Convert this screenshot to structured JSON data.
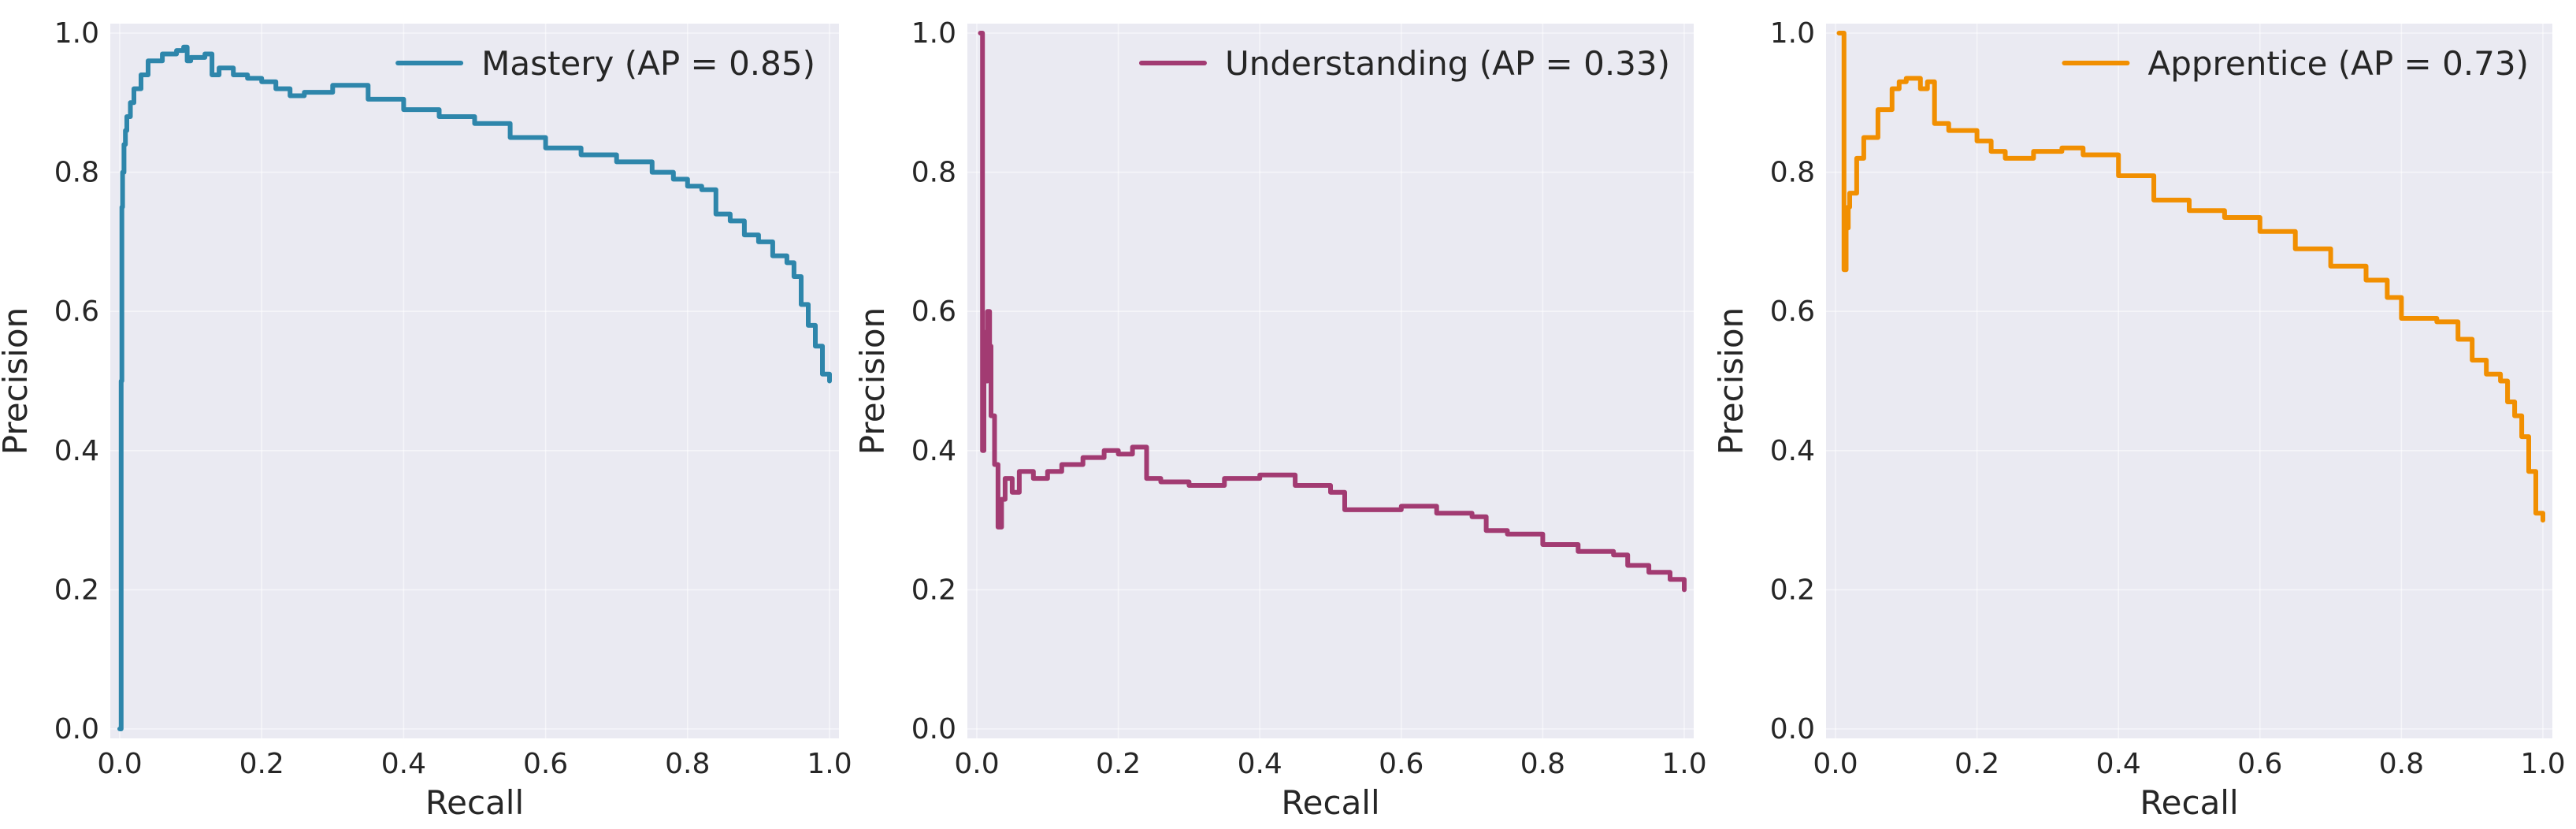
{
  "chart_data": [
    {
      "type": "line",
      "xlabel": "Recall",
      "ylabel": "Precision",
      "xlim": [
        0,
        1
      ],
      "ylim": [
        0,
        1
      ],
      "xticks": [
        "0.0",
        "0.2",
        "0.4",
        "0.6",
        "0.8",
        "1.0"
      ],
      "yticks": [
        "0.0",
        "0.2",
        "0.4",
        "0.6",
        "0.8",
        "1.0"
      ],
      "grid": true,
      "legend": "top-right",
      "series": [
        {
          "name": "Mastery (AP = 0.85)",
          "color": "#2e86ab",
          "x": [
            0.0,
            0.002,
            0.003,
            0.004,
            0.006,
            0.008,
            0.01,
            0.015,
            0.02,
            0.03,
            0.04,
            0.06,
            0.08,
            0.09,
            0.095,
            0.1,
            0.12,
            0.13,
            0.14,
            0.16,
            0.18,
            0.2,
            0.22,
            0.24,
            0.26,
            0.3,
            0.35,
            0.4,
            0.45,
            0.5,
            0.55,
            0.6,
            0.65,
            0.7,
            0.75,
            0.78,
            0.8,
            0.82,
            0.84,
            0.86,
            0.88,
            0.9,
            0.92,
            0.94,
            0.95,
            0.96,
            0.97,
            0.98,
            0.99,
            1.0
          ],
          "y": [
            0.0,
            0.5,
            0.75,
            0.8,
            0.84,
            0.86,
            0.88,
            0.9,
            0.92,
            0.94,
            0.96,
            0.97,
            0.975,
            0.98,
            0.96,
            0.965,
            0.97,
            0.94,
            0.95,
            0.94,
            0.935,
            0.93,
            0.92,
            0.91,
            0.915,
            0.925,
            0.905,
            0.89,
            0.88,
            0.87,
            0.85,
            0.835,
            0.825,
            0.815,
            0.8,
            0.79,
            0.78,
            0.775,
            0.74,
            0.73,
            0.71,
            0.7,
            0.68,
            0.67,
            0.65,
            0.61,
            0.58,
            0.55,
            0.51,
            0.5
          ]
        }
      ]
    },
    {
      "type": "line",
      "xlabel": "Recall",
      "ylabel": "Precision",
      "xlim": [
        0,
        1
      ],
      "ylim": [
        0,
        1
      ],
      "xticks": [
        "0.0",
        "0.2",
        "0.4",
        "0.6",
        "0.8",
        "1.0"
      ],
      "yticks": [
        "0.0",
        "0.2",
        "0.4",
        "0.6",
        "0.8",
        "1.0"
      ],
      "grid": true,
      "legend": "top-right",
      "series": [
        {
          "name": "Understanding (AP = 0.33)",
          "color": "#a23b72",
          "x": [
            0.005,
            0.008,
            0.01,
            0.012,
            0.015,
            0.018,
            0.02,
            0.025,
            0.03,
            0.035,
            0.04,
            0.05,
            0.06,
            0.08,
            0.1,
            0.12,
            0.15,
            0.18,
            0.2,
            0.22,
            0.24,
            0.26,
            0.3,
            0.35,
            0.4,
            0.45,
            0.5,
            0.52,
            0.55,
            0.6,
            0.65,
            0.7,
            0.72,
            0.75,
            0.8,
            0.85,
            0.9,
            0.92,
            0.95,
            0.98,
            1.0
          ],
          "y": [
            1.0,
            0.4,
            0.57,
            0.5,
            0.6,
            0.55,
            0.45,
            0.38,
            0.29,
            0.33,
            0.36,
            0.34,
            0.37,
            0.36,
            0.37,
            0.38,
            0.39,
            0.4,
            0.395,
            0.405,
            0.36,
            0.355,
            0.35,
            0.36,
            0.365,
            0.35,
            0.34,
            0.315,
            0.315,
            0.32,
            0.31,
            0.305,
            0.285,
            0.28,
            0.265,
            0.255,
            0.25,
            0.235,
            0.225,
            0.215,
            0.2
          ]
        }
      ]
    },
    {
      "type": "line",
      "xlabel": "Recall",
      "ylabel": "Precision",
      "xlim": [
        0,
        1
      ],
      "ylim": [
        0,
        1
      ],
      "xticks": [
        "0.0",
        "0.2",
        "0.4",
        "0.6",
        "0.8",
        "1.0"
      ],
      "yticks": [
        "0.0",
        "0.2",
        "0.4",
        "0.6",
        "0.8",
        "1.0"
      ],
      "grid": true,
      "legend": "top-right",
      "series": [
        {
          "name": "Apprentice (AP = 0.73)",
          "color": "#f18f01",
          "x": [
            0.005,
            0.01,
            0.012,
            0.015,
            0.018,
            0.02,
            0.03,
            0.04,
            0.06,
            0.08,
            0.09,
            0.1,
            0.12,
            0.13,
            0.14,
            0.16,
            0.2,
            0.22,
            0.24,
            0.28,
            0.32,
            0.35,
            0.4,
            0.45,
            0.5,
            0.55,
            0.6,
            0.65,
            0.7,
            0.75,
            0.78,
            0.8,
            0.85,
            0.88,
            0.9,
            0.92,
            0.94,
            0.95,
            0.96,
            0.97,
            0.98,
            0.99,
            1.0
          ],
          "y": [
            1.0,
            1.0,
            0.66,
            0.72,
            0.75,
            0.77,
            0.82,
            0.85,
            0.89,
            0.92,
            0.93,
            0.935,
            0.92,
            0.93,
            0.87,
            0.86,
            0.845,
            0.83,
            0.82,
            0.83,
            0.835,
            0.825,
            0.795,
            0.76,
            0.745,
            0.735,
            0.715,
            0.69,
            0.665,
            0.645,
            0.62,
            0.59,
            0.585,
            0.56,
            0.53,
            0.51,
            0.5,
            0.47,
            0.45,
            0.42,
            0.37,
            0.31,
            0.3
          ]
        }
      ]
    }
  ]
}
